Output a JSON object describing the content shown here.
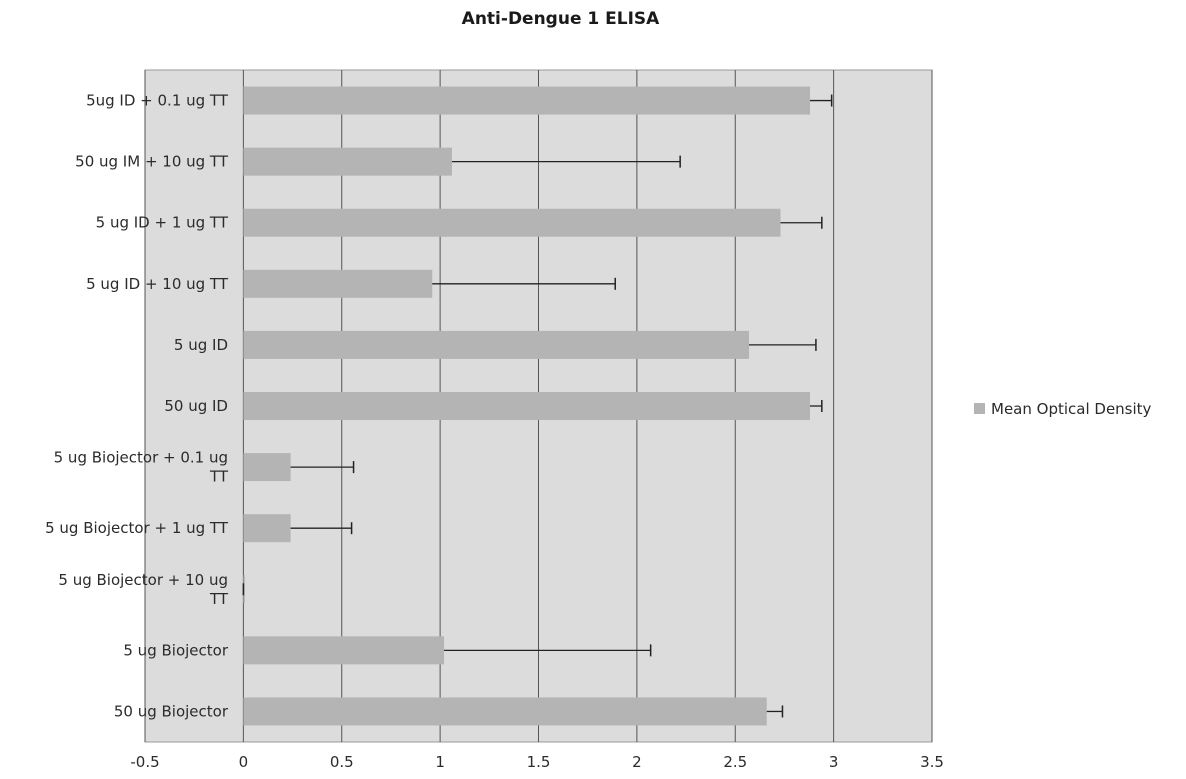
{
  "chart_data": {
    "type": "bar",
    "orientation": "horizontal",
    "title": "Anti-Dengue 1 ELISA",
    "xlabel": "",
    "ylabel": "",
    "xlim": [
      -0.5,
      3.5
    ],
    "xticks": [
      "-0.5",
      "0",
      "0.5",
      "1",
      "1.5",
      "2",
      "2.5",
      "3",
      "3.5"
    ],
    "grid": true,
    "legend_position": "right",
    "categories": [
      [
        "5ug ID + 0.1 ug TT"
      ],
      [
        "50 ug IM + 10 ug TT"
      ],
      [
        "5 ug ID + 1 ug TT"
      ],
      [
        "5 ug ID + 10 ug TT"
      ],
      [
        "5 ug ID"
      ],
      [
        "50 ug ID"
      ],
      [
        "5 ug Biojector + 0.1 ug",
        "TT"
      ],
      [
        "5 ug Biojector + 1 ug TT"
      ],
      [
        "5 ug Biojector + 10 ug",
        "TT"
      ],
      [
        "5 ug Biojector"
      ],
      [
        "50 ug Biojector"
      ]
    ],
    "series": [
      {
        "name": "Mean Optical Density",
        "color": "#b4b4b4",
        "values": [
          2.88,
          1.06,
          2.73,
          0.96,
          2.57,
          2.88,
          0.24,
          0.24,
          0.0,
          1.02,
          2.66
        ],
        "error_plus": [
          0.11,
          1.16,
          0.21,
          0.93,
          0.34,
          0.06,
          0.32,
          0.31,
          0.0,
          1.05,
          0.08
        ]
      }
    ]
  },
  "colors": {
    "plot_background": "#dcdcdc",
    "gridline": "#555555",
    "bar": "#b4b4b4",
    "error_bar": "#222222"
  }
}
